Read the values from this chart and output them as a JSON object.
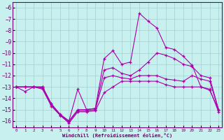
{
  "xlabel": "Windchill (Refroidissement éolien,°C)",
  "background_color": "#c8f0ee",
  "grid_color": "#a0d0d0",
  "line_color": "#aa00aa",
  "xlim_min": -0.4,
  "xlim_max": 23.4,
  "ylim_min": -16.6,
  "ylim_max": -5.5,
  "yticks": [
    -6,
    -7,
    -8,
    -9,
    -10,
    -11,
    -12,
    -13,
    -14,
    -15,
    -16
  ],
  "xticks": [
    0,
    1,
    2,
    3,
    4,
    5,
    6,
    7,
    8,
    9,
    10,
    11,
    12,
    13,
    14,
    15,
    16,
    17,
    18,
    19,
    20,
    21,
    22,
    23
  ],
  "curves": [
    [
      -13.0,
      -13.4,
      -13.0,
      -13.0,
      -14.5,
      -15.5,
      -16.0,
      -13.2,
      -15.0,
      -14.9,
      -10.5,
      -9.8,
      -11.0,
      -10.8,
      -6.5,
      -7.2,
      -7.8,
      -9.5,
      -9.7,
      -10.3,
      -11.1,
      -13.0,
      -13.3,
      -15.0
    ],
    [
      -13.0,
      -13.0,
      -13.0,
      -13.0,
      -14.5,
      -15.4,
      -16.0,
      -15.0,
      -15.0,
      -14.9,
      -11.5,
      -11.3,
      -11.8,
      -12.0,
      -11.5,
      -10.8,
      -10.0,
      -10.2,
      -10.5,
      -11.0,
      -11.2,
      -12.0,
      -12.2,
      -15.0
    ],
    [
      -13.0,
      -13.0,
      -13.0,
      -13.1,
      -14.6,
      -15.5,
      -16.1,
      -15.1,
      -15.1,
      -15.0,
      -12.2,
      -12.0,
      -12.2,
      -12.3,
      -12.0,
      -12.0,
      -12.0,
      -12.3,
      -12.4,
      -12.5,
      -12.0,
      -12.3,
      -12.5,
      -15.0
    ],
    [
      -13.0,
      -13.0,
      -13.0,
      -13.2,
      -14.7,
      -15.5,
      -16.2,
      -15.2,
      -15.2,
      -15.1,
      -13.5,
      -13.0,
      -12.5,
      -12.5,
      -12.5,
      -12.5,
      -12.5,
      -12.8,
      -13.0,
      -13.0,
      -13.0,
      -13.0,
      -13.2,
      -15.2
    ]
  ]
}
